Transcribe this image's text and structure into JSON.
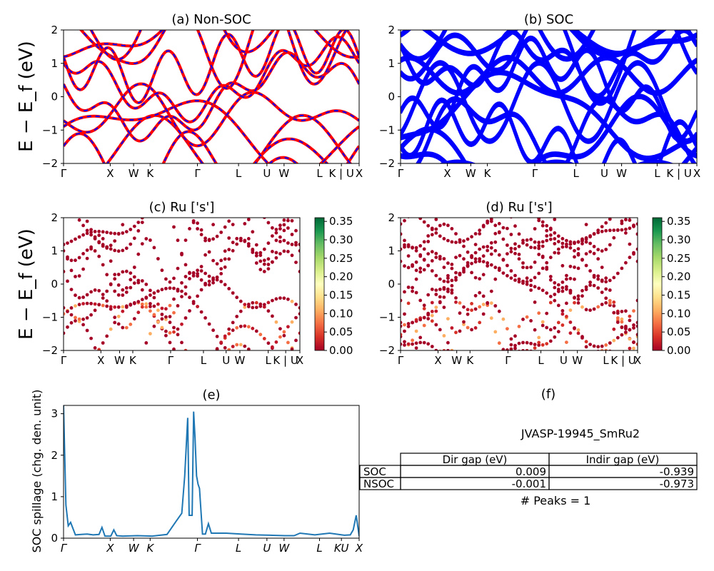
{
  "figure": {
    "ylabel_band": "E − E_f (eV)",
    "ylabel_spillage": "SOC spillage (chg. den. unit)",
    "material": "JVASP-19945_SmRu2",
    "table": {
      "col_headers": [
        "Dir gap (eV)",
        "Indir gap (eV)"
      ],
      "rows": [
        {
          "label": "SOC",
          "dir": "0.009",
          "indir": "-0.939"
        },
        {
          "label": "NSOC",
          "dir": "-0.001",
          "indir": "-0.973"
        }
      ]
    },
    "peaks_text": "# Peaks = 1",
    "panel_f_title": "(f)"
  },
  "chart_data": [
    {
      "id": "a",
      "type": "line",
      "title": "(a) Non-SOC",
      "xticks": [
        "Γ",
        "X",
        "W",
        "K",
        "Γ",
        "L",
        "U",
        "W",
        "L",
        "K | U",
        "X"
      ],
      "ylim": [
        -2,
        2
      ],
      "yticks": [
        "2",
        "1",
        "0",
        "−1",
        "−2"
      ],
      "series": [
        {
          "color": "#ff0000",
          "style": "solid"
        },
        {
          "color": "#0000ff",
          "style": "dashed"
        }
      ]
    },
    {
      "id": "b",
      "type": "line",
      "title": "(b) SOC",
      "xticks": [
        "Γ",
        "X",
        "W",
        "K",
        "Γ",
        "L",
        "U",
        "W",
        "L",
        "K | U",
        "X"
      ],
      "ylim": [
        -2,
        2
      ],
      "yticks": [
        "2",
        "1",
        "0",
        "−1",
        "−2"
      ],
      "series": [
        {
          "color": "#0000ff",
          "style": "solid"
        }
      ]
    },
    {
      "id": "c",
      "type": "scatter",
      "title": "(c)  Ru ['s']",
      "xticks": [
        "Γ",
        "X",
        "W",
        "K",
        "Γ",
        "L",
        "U",
        "W",
        "L",
        "K | U",
        "X"
      ],
      "ylim": [
        -2,
        2
      ],
      "yticks": [
        "2",
        "1",
        "0",
        "−1",
        "−2"
      ],
      "colorbar": {
        "cmap": "RdYlGn",
        "range": [
          0,
          0.36
        ],
        "ticks": [
          "0.35",
          "0.30",
          "0.25",
          "0.20",
          "0.15",
          "0.10",
          "0.05",
          "0.00"
        ]
      }
    },
    {
      "id": "d",
      "type": "scatter",
      "title": "(d) Ru ['s']",
      "xticks": [
        "Γ",
        "X",
        "W",
        "K",
        "Γ",
        "L",
        "U",
        "W",
        "L",
        "K | U",
        "X"
      ],
      "ylim": [
        -2,
        2
      ],
      "yticks": [
        "2",
        "1",
        "0",
        "−1",
        "−2"
      ],
      "colorbar": {
        "cmap": "RdYlGn",
        "range": [
          0,
          0.36
        ],
        "ticks": [
          "0.35",
          "0.30",
          "0.25",
          "0.20",
          "0.15",
          "0.10",
          "0.05",
          "0.00"
        ]
      }
    },
    {
      "id": "e",
      "type": "line",
      "title": "(e)",
      "xticks": [
        "Γ",
        "X",
        "W",
        "K",
        "Γ",
        "L",
        "U",
        "W",
        "L",
        "KU",
        "X"
      ],
      "ylim": [
        0,
        3.2
      ],
      "yticks": [
        "3",
        "2",
        "1",
        "0"
      ],
      "series": [
        {
          "color": "#1f77b4",
          "x": [
            0.0,
            0.008,
            0.016,
            0.024,
            0.04,
            0.06,
            0.08,
            0.1,
            0.12,
            0.13,
            0.14,
            0.15,
            0.16,
            0.17,
            0.18,
            0.2,
            0.25,
            0.3,
            0.35,
            0.38,
            0.4,
            0.41,
            0.42,
            0.425,
            0.43,
            0.435,
            0.44,
            0.445,
            0.45,
            0.455,
            0.46,
            0.47,
            0.48,
            0.49,
            0.5,
            0.55,
            0.6,
            0.65,
            0.7,
            0.75,
            0.78,
            0.8,
            0.85,
            0.9,
            0.95,
            0.97,
            0.98,
            0.99,
            1.0
          ],
          "y": [
            3.2,
            0.8,
            0.3,
            0.38,
            0.08,
            0.09,
            0.1,
            0.08,
            0.09,
            0.26,
            0.05,
            0.05,
            0.05,
            0.2,
            0.06,
            0.05,
            0.06,
            0.05,
            0.09,
            0.4,
            0.6,
            1.5,
            2.9,
            0.55,
            0.55,
            0.55,
            3.05,
            2.4,
            1.5,
            1.3,
            1.2,
            0.1,
            0.1,
            0.35,
            0.12,
            0.12,
            0.1,
            0.08,
            0.07,
            0.06,
            0.06,
            0.12,
            0.08,
            0.12,
            0.07,
            0.08,
            0.2,
            0.55,
            0.05
          ]
        }
      ]
    }
  ]
}
